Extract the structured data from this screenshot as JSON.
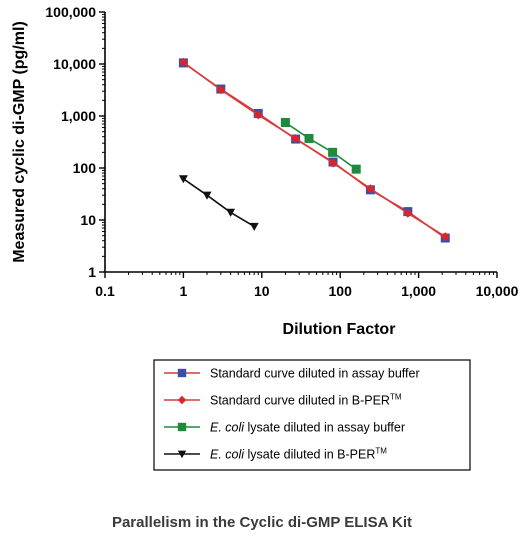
{
  "chart_data": {
    "type": "line",
    "title": "",
    "caption": "Parallelism in the Cyclic di-GMP ELISA Kit",
    "xlabel": "Dilution Factor",
    "ylabel": "Measured cyclic di-GMP (pg/ml)",
    "x_scale": "log",
    "y_scale": "log",
    "xlim": [
      0.1,
      10000
    ],
    "ylim": [
      1,
      100000
    ],
    "x_ticks": [
      {
        "value": 0.1,
        "label": "0.1"
      },
      {
        "value": 1,
        "label": "1"
      },
      {
        "value": 10,
        "label": "10"
      },
      {
        "value": 100,
        "label": "100"
      },
      {
        "value": 1000,
        "label": "1,000"
      },
      {
        "value": 10000,
        "label": "10,000"
      }
    ],
    "y_ticks": [
      {
        "value": 1,
        "label": "1"
      },
      {
        "value": 10,
        "label": "10"
      },
      {
        "value": 100,
        "label": "100"
      },
      {
        "value": 1000,
        "label": "1,000"
      },
      {
        "value": 10000,
        "label": "10,000"
      },
      {
        "value": 100000,
        "label": "100,000"
      }
    ],
    "grid": false,
    "legend_position": "bottom",
    "series": [
      {
        "name": "Standard curve diluted in assay buffer",
        "color": "#3b4fa8",
        "line_color": "#d93a3a",
        "marker": "square",
        "x": [
          1,
          3,
          9,
          27,
          81,
          243,
          729,
          2187
        ],
        "y": [
          10500,
          3300,
          1120,
          360,
          130,
          38,
          14.5,
          4.5
        ]
      },
      {
        "name": "Standard curve diluted in B-PER™",
        "color": "#d9252a",
        "line_color": "#d93a3a",
        "marker": "diamond",
        "x": [
          1,
          3,
          9,
          27,
          81,
          243,
          729,
          2187
        ],
        "y": [
          10800,
          3200,
          1050,
          370,
          125,
          40,
          13.5,
          4.8
        ]
      },
      {
        "name": "E. coli lysate diluted in assay buffer",
        "color": "#1e8a3c",
        "line_color": "#1e8a3c",
        "marker": "square",
        "x": [
          20,
          40,
          80,
          160
        ],
        "y": [
          750,
          370,
          200,
          95
        ]
      },
      {
        "name": "E. coli lysate diluted in B-PER™",
        "color": "#111111",
        "line_color": "#111111",
        "marker": "triangle-down",
        "x": [
          1,
          2,
          4,
          8
        ],
        "y": [
          62,
          30,
          14,
          7.5
        ]
      }
    ],
    "legend_entries": [
      {
        "prefix": "",
        "italic": "",
        "text": "Standard curve diluted in assay buffer",
        "sup": ""
      },
      {
        "prefix": "",
        "italic": "",
        "text": "Standard curve diluted in B-PER",
        "sup": "TM"
      },
      {
        "prefix": "",
        "italic": "E. coli",
        "text": " lysate diluted in assay buffer",
        "sup": ""
      },
      {
        "prefix": "",
        "italic": "E. coli",
        "text": " lysate diluted in B-PER",
        "sup": "TM"
      }
    ]
  }
}
